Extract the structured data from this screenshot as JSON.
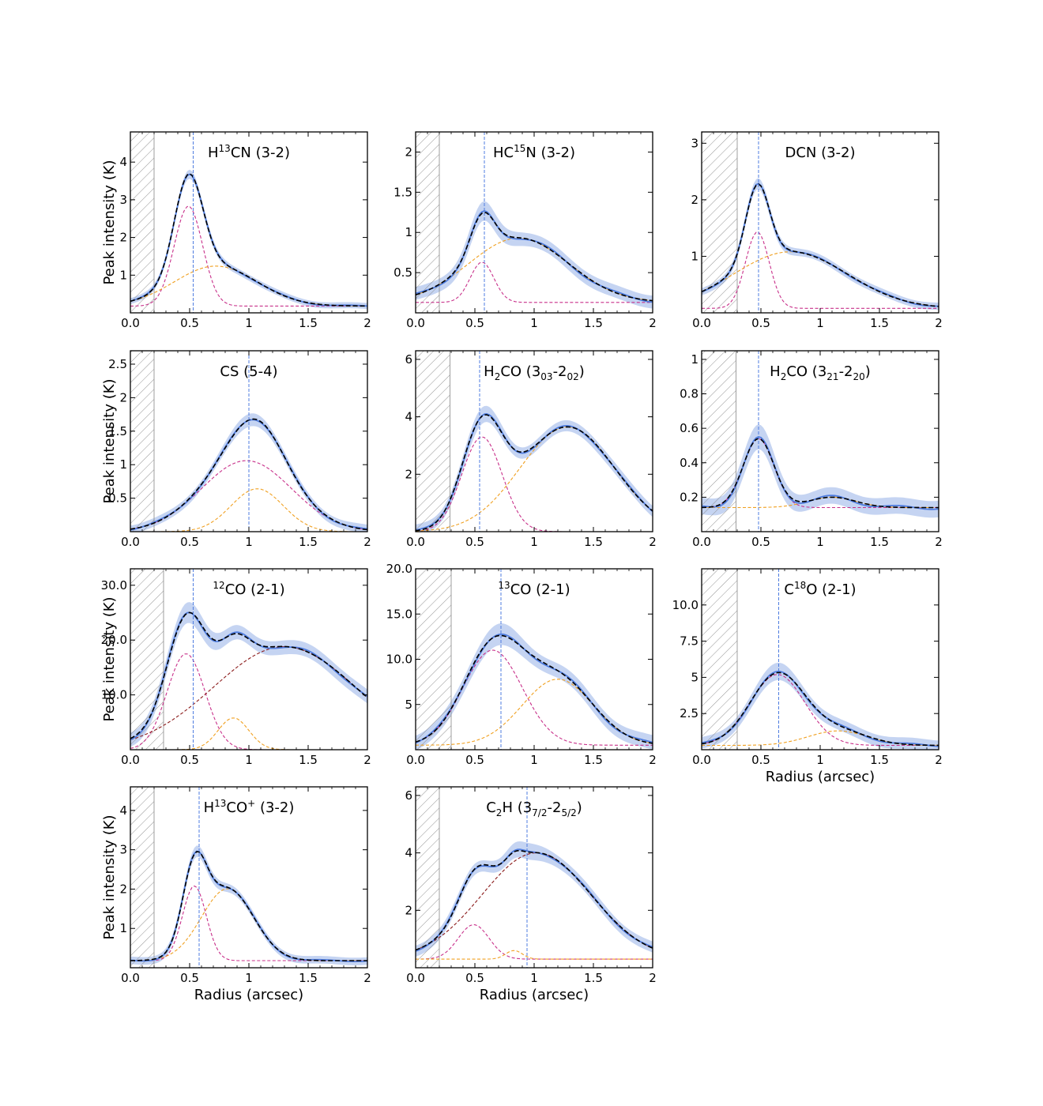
{
  "figure": {
    "ylabel": "Peak intensity (K)",
    "xlabel": "Radius (arcsec)"
  },
  "colors": {
    "data": "#4f7de0",
    "band": "#c5d4f2",
    "model": "#000000",
    "comp_magenta": "#c8308a",
    "comp_orange": "#f0a020",
    "comp_darkred": "#8b1a1a",
    "hatch": "#888888"
  },
  "chart_data": [
    {
      "type": "line",
      "title_parts": [
        [
          "H",
          0
        ],
        [
          "13",
          1
        ],
        [
          "CN (3-2)",
          0
        ]
      ],
      "xlim": [
        0,
        2.0
      ],
      "ylim": [
        0,
        4.8
      ],
      "xticks": [
        0,
        0.5,
        1.0,
        1.5,
        2.0
      ],
      "yticks": [
        1,
        2,
        3,
        4
      ],
      "inner_cutoff": 0.2,
      "ring_radius": 0.53,
      "ylabel": true,
      "xlabel": false,
      "offset": 0.18,
      "noise": 0.05,
      "components": [
        {
          "color": "magenta",
          "amp": 2.65,
          "mu": 0.49,
          "sig": 0.12
        },
        {
          "color": "orange",
          "amp": 1.06,
          "mu": 0.72,
          "sig": 0.35
        }
      ]
    },
    {
      "type": "line",
      "title_parts": [
        [
          "HC",
          0
        ],
        [
          "15",
          1
        ],
        [
          "N (3-2)",
          0
        ]
      ],
      "xlim": [
        0,
        2.0
      ],
      "ylim": [
        0,
        2.25
      ],
      "xticks": [
        0,
        0.5,
        1.0,
        1.5,
        2.0
      ],
      "yticks": [
        0.5,
        1.0,
        1.5,
        2.0
      ],
      "inner_cutoff": 0.2,
      "ring_radius": 0.58,
      "ylabel": false,
      "xlabel": false,
      "offset": 0.13,
      "noise": 0.05,
      "components": [
        {
          "color": "magenta",
          "amp": 0.5,
          "mu": 0.56,
          "sig": 0.1
        },
        {
          "color": "orange",
          "amp": 0.8,
          "mu": 0.87,
          "sig": 0.42
        }
      ]
    },
    {
      "type": "line",
      "title_parts": [
        [
          "DCN (3-2)",
          0
        ]
      ],
      "xlim": [
        0,
        2.0
      ],
      "ylim": [
        0,
        3.2
      ],
      "xticks": [
        0,
        0.5,
        1.0,
        1.5,
        2.0
      ],
      "yticks": [
        1,
        2,
        3
      ],
      "inner_cutoff": 0.3,
      "ring_radius": 0.48,
      "ylabel": false,
      "xlabel": false,
      "offset": 0.08,
      "noise": 0.04,
      "components": [
        {
          "color": "magenta",
          "amp": 1.35,
          "mu": 0.47,
          "sig": 0.1
        },
        {
          "color": "orange",
          "amp": 1.0,
          "mu": 0.75,
          "sig": 0.48
        }
      ]
    },
    {
      "type": "line",
      "title_parts": [
        [
          "CS (5-4)",
          0
        ]
      ],
      "xlim": [
        0,
        2.0
      ],
      "ylim": [
        0,
        2.7
      ],
      "xticks": [
        0,
        0.5,
        1.0,
        1.5,
        2.0
      ],
      "yticks": [
        0.5,
        1.0,
        1.5,
        2.0,
        2.5
      ],
      "inner_cutoff": 0.2,
      "ring_radius": 1.0,
      "ylabel": true,
      "xlabel": false,
      "offset": 0.0,
      "noise": 0.04,
      "components": [
        {
          "color": "magenta",
          "amp": 1.06,
          "mu": 0.98,
          "sig": 0.38
        },
        {
          "color": "orange",
          "amp": 0.64,
          "mu": 1.07,
          "sig": 0.22
        }
      ]
    },
    {
      "type": "line",
      "title_parts": [
        [
          "H",
          0
        ],
        [
          "2",
          -1
        ],
        [
          "CO (3",
          0
        ],
        [
          "03",
          -1
        ],
        [
          "-2",
          0
        ],
        [
          "02",
          -1
        ],
        [
          ")",
          0
        ]
      ],
      "xlim": [
        0,
        2.0
      ],
      "ylim": [
        0,
        6.3
      ],
      "xticks": [
        0,
        0.5,
        1.0,
        1.5,
        2.0
      ],
      "yticks": [
        2,
        4,
        6
      ],
      "inner_cutoff": 0.29,
      "ring_radius": 0.54,
      "ylabel": false,
      "xlabel": false,
      "offset": 0.0,
      "noise": 0.12,
      "components": [
        {
          "color": "magenta",
          "amp": 3.3,
          "mu": 0.56,
          "sig": 0.17
        },
        {
          "color": "orange",
          "amp": 3.65,
          "mu": 1.28,
          "sig": 0.4
        }
      ]
    },
    {
      "type": "line",
      "title_parts": [
        [
          "H",
          0
        ],
        [
          "2",
          -1
        ],
        [
          "CO (3",
          0
        ],
        [
          "21",
          -1
        ],
        [
          "-2",
          0
        ],
        [
          "20",
          -1
        ],
        [
          ")",
          0
        ]
      ],
      "xlim": [
        0,
        2.0
      ],
      "ylim": [
        0,
        1.05
      ],
      "xticks": [
        0,
        0.5,
        1.0,
        1.5,
        2.0
      ],
      "yticks": [
        0.2,
        0.4,
        0.6,
        0.8,
        1.0
      ],
      "inner_cutoff": 0.29,
      "ring_radius": 0.48,
      "ylabel": false,
      "xlabel": false,
      "offset": 0.14,
      "noise": 0.03,
      "components": [
        {
          "color": "magenta",
          "amp": 0.4,
          "mu": 0.48,
          "sig": 0.13
        },
        {
          "color": "orange",
          "amp": 0.06,
          "mu": 1.1,
          "sig": 0.2
        }
      ]
    },
    {
      "type": "line",
      "title_parts": [
        [
          "12",
          1
        ],
        [
          "CO (2-1)",
          0
        ]
      ],
      "xlim": [
        0,
        2.0
      ],
      "ylim": [
        0,
        33
      ],
      "xticks": [
        0,
        0.5,
        1.0,
        1.5,
        2.0
      ],
      "yticks": [
        10,
        20,
        30
      ],
      "inner_cutoff": 0.28,
      "ring_radius": 0.53,
      "ylabel": true,
      "xlabel": false,
      "offset": 0.0,
      "noise": 0.8,
      "components": [
        {
          "color": "magenta",
          "amp": 17.5,
          "mu": 0.47,
          "sig": 0.16
        },
        {
          "color": "orange",
          "amp": 5.8,
          "mu": 0.87,
          "sig": 0.13
        },
        {
          "color": "darkred",
          "amp": 18.8,
          "mu": 1.3,
          "sig": 0.6
        }
      ]
    },
    {
      "type": "line",
      "title_parts": [
        [
          "13",
          1
        ],
        [
          "CO (2-1)",
          0
        ]
      ],
      "xlim": [
        0,
        2.0
      ],
      "ylim": [
        0,
        20
      ],
      "xticks": [
        0,
        0.5,
        1.0,
        1.5,
        2.0
      ],
      "yticks": [
        5,
        10,
        15,
        20
      ],
      "inner_cutoff": 0.3,
      "ring_radius": 0.72,
      "ylabel": false,
      "xlabel": false,
      "offset": 0.5,
      "noise": 0.5,
      "components": [
        {
          "color": "magenta",
          "amp": 10.5,
          "mu": 0.65,
          "sig": 0.25
        },
        {
          "color": "orange",
          "amp": 7.3,
          "mu": 1.2,
          "sig": 0.3
        }
      ]
    },
    {
      "type": "line",
      "title_parts": [
        [
          "C",
          0
        ],
        [
          "18",
          1
        ],
        [
          "O (2-1)",
          0
        ]
      ],
      "xlim": [
        0,
        2.0
      ],
      "ylim": [
        0,
        12.5
      ],
      "xticks": [
        0,
        0.5,
        1.0,
        1.5,
        2.0
      ],
      "yticks": [
        2.5,
        5.0,
        7.5,
        10.0
      ],
      "inner_cutoff": 0.3,
      "ring_radius": 0.65,
      "ylabel": false,
      "xlabel": true,
      "offset": 0.3,
      "noise": 0.25,
      "components": [
        {
          "color": "magenta",
          "amp": 4.9,
          "mu": 0.64,
          "sig": 0.23
        },
        {
          "color": "orange",
          "amp": 1.0,
          "mu": 1.15,
          "sig": 0.25
        }
      ]
    },
    {
      "type": "line",
      "title_parts": [
        [
          "H",
          0
        ],
        [
          "13",
          1
        ],
        [
          "CO",
          0
        ],
        [
          "+",
          1
        ],
        [
          " (3-2)",
          0
        ]
      ],
      "xlim": [
        0,
        2.0
      ],
      "ylim": [
        0,
        4.6
      ],
      "xticks": [
        0,
        0.5,
        1.0,
        1.5,
        2.0
      ],
      "yticks": [
        1,
        2,
        3,
        4
      ],
      "inner_cutoff": 0.2,
      "ring_radius": 0.58,
      "ylabel": true,
      "xlabel": true,
      "offset": 0.18,
      "noise": 0.06,
      "components": [
        {
          "color": "magenta",
          "amp": 1.9,
          "mu": 0.54,
          "sig": 0.1
        },
        {
          "color": "orange",
          "amp": 1.83,
          "mu": 0.82,
          "sig": 0.22
        }
      ]
    },
    {
      "type": "line",
      "title_parts": [
        [
          "C",
          0
        ],
        [
          "2",
          -1
        ],
        [
          "H (3",
          0
        ],
        [
          "7/2",
          -1
        ],
        [
          "-2",
          0
        ],
        [
          "5/2",
          -1
        ],
        [
          ")",
          0
        ]
      ],
      "xlim": [
        0,
        2.0
      ],
      "ylim": [
        0,
        6.3
      ],
      "xticks": [
        0,
        0.5,
        1.0,
        1.5,
        2.0
      ],
      "yticks": [
        2,
        4,
        6
      ],
      "inner_cutoff": 0.2,
      "ring_radius": 0.94,
      "ylabel": false,
      "xlabel": true,
      "offset": 0.3,
      "noise": 0.12,
      "components": [
        {
          "color": "magenta",
          "amp": 1.2,
          "mu": 0.49,
          "sig": 0.13
        },
        {
          "color": "orange",
          "amp": 0.3,
          "mu": 0.83,
          "sig": 0.07
        },
        {
          "color": "darkred",
          "amp": 3.7,
          "mu": 1.02,
          "sig": 0.46
        }
      ]
    }
  ]
}
